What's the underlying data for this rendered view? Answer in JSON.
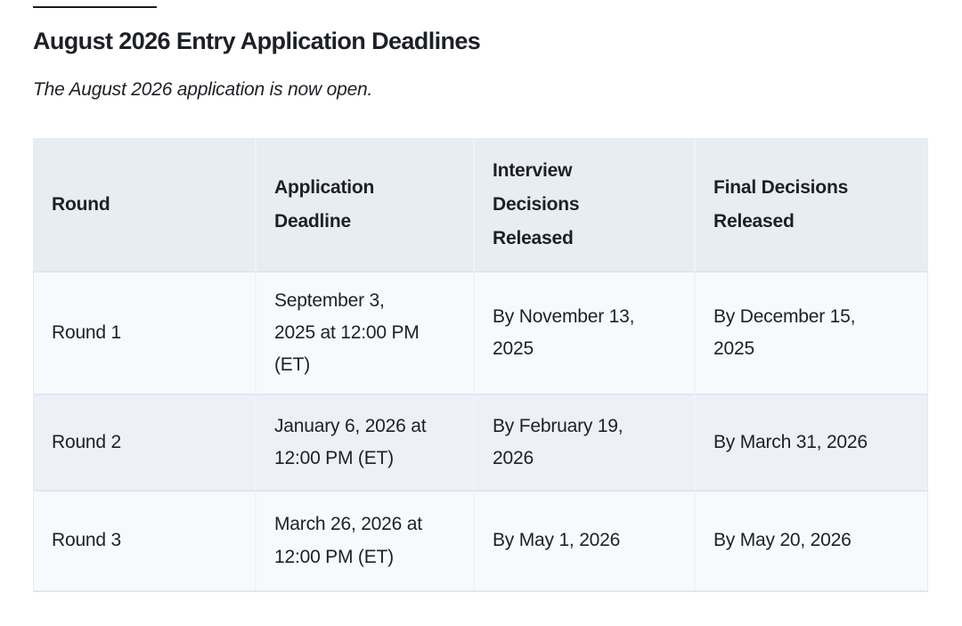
{
  "page": {
    "title": "August 2026 Entry Application Deadlines",
    "subtitle": "The August 2026 application is now open."
  },
  "colors": {
    "text": "#1d2025",
    "header_bg": "#e8ecf3",
    "row_bg": "#f8f9fc",
    "row_alt_bg": "#edf0f6",
    "v_divider": "#f1f3f8",
    "h_border": "#e1e6ef",
    "outer_border": "#e6eaf1"
  },
  "table": {
    "headers": [
      {
        "id": "round",
        "label": "Round"
      },
      {
        "id": "application-deadline",
        "label": "Application\nDeadline"
      },
      {
        "id": "interview-decisions-released",
        "label": "Interview\nDecisions\nReleased"
      },
      {
        "id": "final-decisions-released",
        "label": "Final Decisions\nReleased"
      }
    ],
    "rows": [
      {
        "round": "Round 1",
        "application_deadline": "September 3,\n2025 at 12:00 PM\n(ET)",
        "interview_decisions": "By November 13,\n2025",
        "final_decisions": "By December 15,\n2025"
      },
      {
        "round": "Round 2",
        "application_deadline": "January 6, 2026 at\n12:00 PM (ET)",
        "interview_decisions": "By February 19,\n2026",
        "final_decisions": "By March 31, 2026"
      },
      {
        "round": "Round 3",
        "application_deadline": "March 26, 2026 at\n12:00 PM (ET)",
        "interview_decisions": "By May 1, 2026",
        "final_decisions": "By May 20, 2026"
      }
    ]
  }
}
